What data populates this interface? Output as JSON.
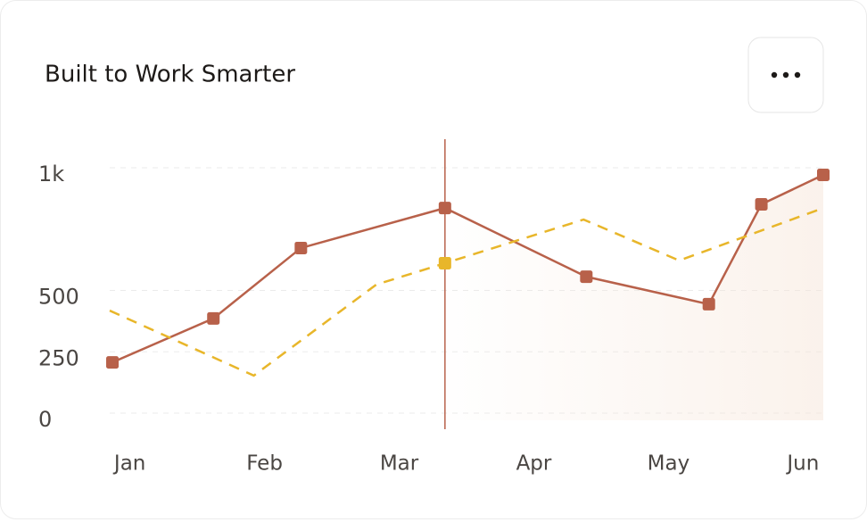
{
  "chart_data": {
    "type": "line",
    "title": "Built to Work Smarter",
    "xlim": [
      -0.15,
      5.15
    ],
    "xticks": [
      {
        "value": 0,
        "label": "Jan"
      },
      {
        "value": 1,
        "label": "Feb"
      },
      {
        "value": 2,
        "label": "Mar"
      },
      {
        "value": 3,
        "label": "Apr"
      },
      {
        "value": 4,
        "label": "May"
      },
      {
        "value": 5,
        "label": "Jun"
      }
    ],
    "ylim": [
      0,
      1000
    ],
    "yticks": [
      0,
      250,
      500,
      {
        "value": 1000,
        "label": "1k"
      }
    ],
    "grid": true,
    "cursor_x": 2.34,
    "series": [
      {
        "color": "#b8614a",
        "dash": false,
        "x": [
          -0.13,
          0.62,
          1.27,
          2.34,
          3.39,
          4.3,
          4.69,
          5.15
        ],
        "values": [
          236,
          415,
          702,
          865,
          585,
          473,
          880,
          1000
        ]
      },
      {
        "color": "#e8b62a",
        "dash": true,
        "x": [
          -0.15,
          0.92,
          1.83,
          2.34,
          3.37,
          4.08,
          5.15
        ],
        "values": [
          447,
          182,
          553,
          640,
          818,
          651,
          865
        ]
      }
    ]
  }
}
